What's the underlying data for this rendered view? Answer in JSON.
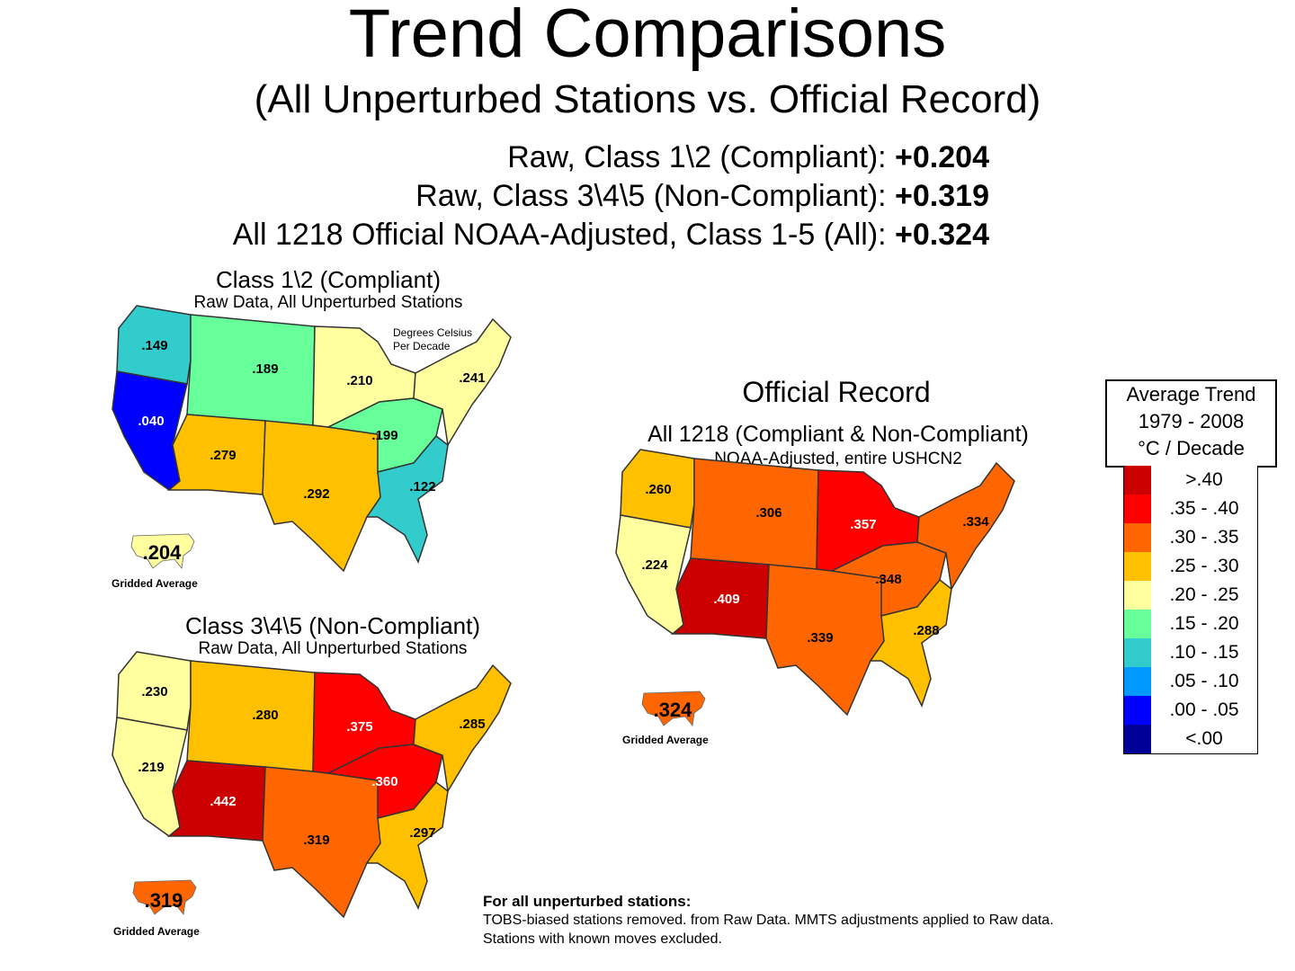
{
  "header": {
    "title": "Trend Comparisons",
    "subtitle": "(All Unperturbed Stations vs. Official Record)"
  },
  "summary": [
    {
      "label": "Raw, Class 1\\2 (Compliant):",
      "value": "+0.204"
    },
    {
      "label": "Raw, Class 3\\4\\5 (Non-Compliant):",
      "value": "+0.319"
    },
    {
      "label": "All 1218 Official NOAA-Adjusted, Class 1-5 (All):",
      "value": "+0.324"
    }
  ],
  "maps": {
    "compliant": {
      "title": "Class 1\\2 (Compliant)",
      "subtitle": "Raw Data, All Unperturbed Stations",
      "note_line1": "Degrees Celsius",
      "note_line2": "Per Decade",
      "gridded_value": ".204",
      "gridded_label": "Gridded Average",
      "gridded_color": "#FFFFA0",
      "regions": {
        "northwest": {
          "value": ".149",
          "color": "#33CCCC"
        },
        "west": {
          "value": ".040",
          "color": "#0000FF"
        },
        "northern_rockies": {
          "value": ".189",
          "color": "#66FF99"
        },
        "southwest": {
          "value": ".279",
          "color": "#FFC000"
        },
        "south": {
          "value": ".292",
          "color": "#FFC000"
        },
        "upper_midwest": {
          "value": ".210",
          "color": "#FFFFA0"
        },
        "ohio_valley": {
          "value": ".199",
          "color": "#66FF99"
        },
        "southeast": {
          "value": ".122",
          "color": "#33CCCC"
        },
        "northeast": {
          "value": ".241",
          "color": "#FFFFA0"
        }
      }
    },
    "noncompliant": {
      "title": "Class 3\\4\\5 (Non-Compliant)",
      "subtitle": "Raw Data, All Unperturbed Stations",
      "gridded_value": ".319",
      "gridded_label": "Gridded Average",
      "gridded_color": "#FF6600",
      "regions": {
        "northwest": {
          "value": ".230",
          "color": "#FFFFA0"
        },
        "west": {
          "value": ".219",
          "color": "#FFFFA0"
        },
        "northern_rockies": {
          "value": ".280",
          "color": "#FFC000"
        },
        "southwest": {
          "value": ".442",
          "color": "#CC0000"
        },
        "south": {
          "value": ".319",
          "color": "#FF6600"
        },
        "upper_midwest": {
          "value": ".375",
          "color": "#FF0000"
        },
        "ohio_valley": {
          "value": ".360",
          "color": "#FF0000"
        },
        "southeast": {
          "value": ".297",
          "color": "#FFC000"
        },
        "northeast": {
          "value": ".285",
          "color": "#FFC000"
        }
      }
    },
    "official": {
      "title": "Official Record",
      "subtitle": "All 1218 (Compliant & Non-Compliant)",
      "subtitle2": "NOAA-Adjusted, entire USHCN2",
      "gridded_value": ".324",
      "gridded_label": "Gridded Average",
      "gridded_color": "#FF6600",
      "regions": {
        "northwest": {
          "value": ".260",
          "color": "#FFC000"
        },
        "west": {
          "value": ".224",
          "color": "#FFFFA0"
        },
        "northern_rockies": {
          "value": ".306",
          "color": "#FF6600"
        },
        "southwest": {
          "value": ".409",
          "color": "#CC0000"
        },
        "south": {
          "value": ".339",
          "color": "#FF6600"
        },
        "upper_midwest": {
          "value": ".357",
          "color": "#FF0000"
        },
        "ohio_valley": {
          "value": ".348",
          "color": "#FF6600"
        },
        "southeast": {
          "value": ".288",
          "color": "#FFC000"
        },
        "northeast": {
          "value": ".334",
          "color": "#FF6600"
        }
      }
    }
  },
  "legend": {
    "title_line1": "Average Trend",
    "title_line2": "1979 - 2008",
    "title_line3": "°C / Decade",
    "items": [
      {
        "label": ">.40",
        "color": "#CC0000"
      },
      {
        "label": ".35 - .40",
        "color": "#FF0000"
      },
      {
        "label": ".30 - .35",
        "color": "#FF6600"
      },
      {
        "label": ".25 - .30",
        "color": "#FFC000"
      },
      {
        "label": ".20 - .25",
        "color": "#FFFFA0"
      },
      {
        "label": ".15 - .20",
        "color": "#66FF99"
      },
      {
        "label": ".10 - .15",
        "color": "#33CCCC"
      },
      {
        "label": ".05 - .10",
        "color": "#0099FF"
      },
      {
        "label": ".00 - .05",
        "color": "#0000FF"
      },
      {
        "label": "<.00",
        "color": "#000099"
      }
    ]
  },
  "footnote": {
    "heading": "For all unperturbed stations:",
    "line1": "TOBS-biased stations removed. from Raw Data. MMTS adjustments applied to Raw data.",
    "line2": "Stations with known moves excluded."
  }
}
